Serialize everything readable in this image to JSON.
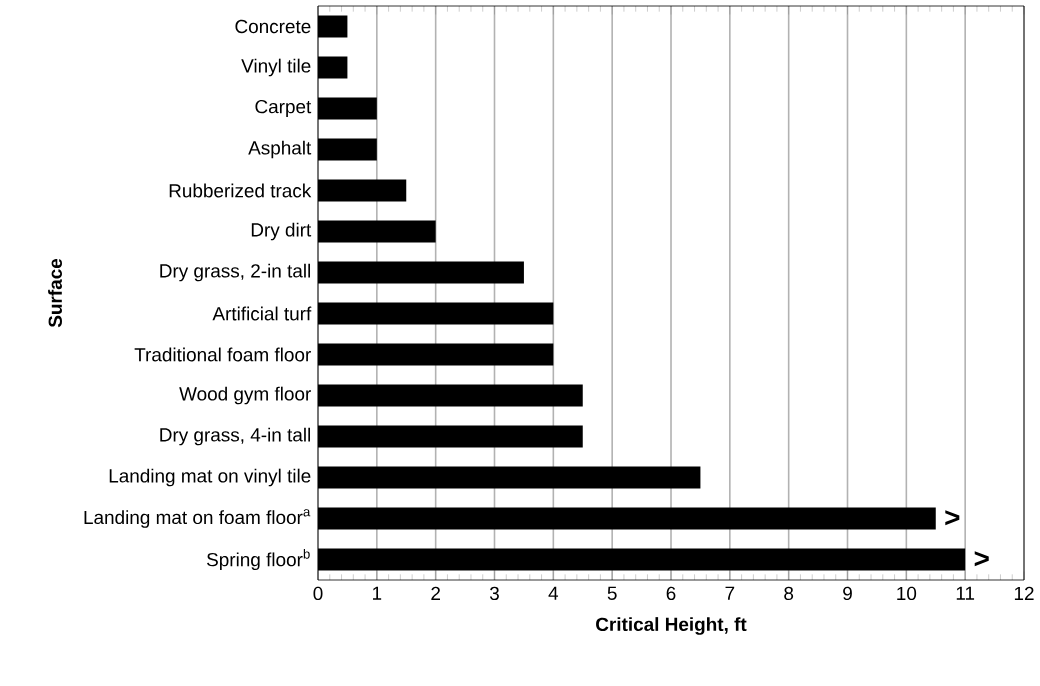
{
  "chart_data": {
    "type": "bar",
    "orientation": "horizontal",
    "xlabel": "Critical Height, ft",
    "ylabel": "Surface",
    "categories": [
      "Concrete",
      "Vinyl tile",
      "Carpet",
      "Asphalt",
      "Rubberized track",
      "Dry dirt",
      "Dry grass, 2-in tall",
      "Artificial turf",
      "Traditional foam floor",
      "Wood gym floor",
      "Dry grass, 4-in tall",
      "Landing mat on vinyl tile",
      "Landing mat on foam floor$^{a}$",
      "Spring floor$^{b}$"
    ],
    "values": [
      0.5,
      0.5,
      1,
      1,
      1.5,
      2,
      3.5,
      4,
      4,
      4.5,
      4.5,
      6.5,
      10.5,
      11
    ],
    "color": "#000000",
    "xlim": [
      0,
      12
    ],
    "xticks": [
      0,
      1,
      2,
      3,
      4,
      5,
      6,
      7,
      8,
      9,
      10,
      11,
      12
    ],
    "grid": "x",
    "annotations": [
      {
        "text": ">",
        "x": 10.5,
        "y": "Landing mat on foam floor$^{a}$"
      },
      {
        "text": ">",
        "x": 11,
        "y": "Spring floor$^{b}$"
      }
    ]
  }
}
